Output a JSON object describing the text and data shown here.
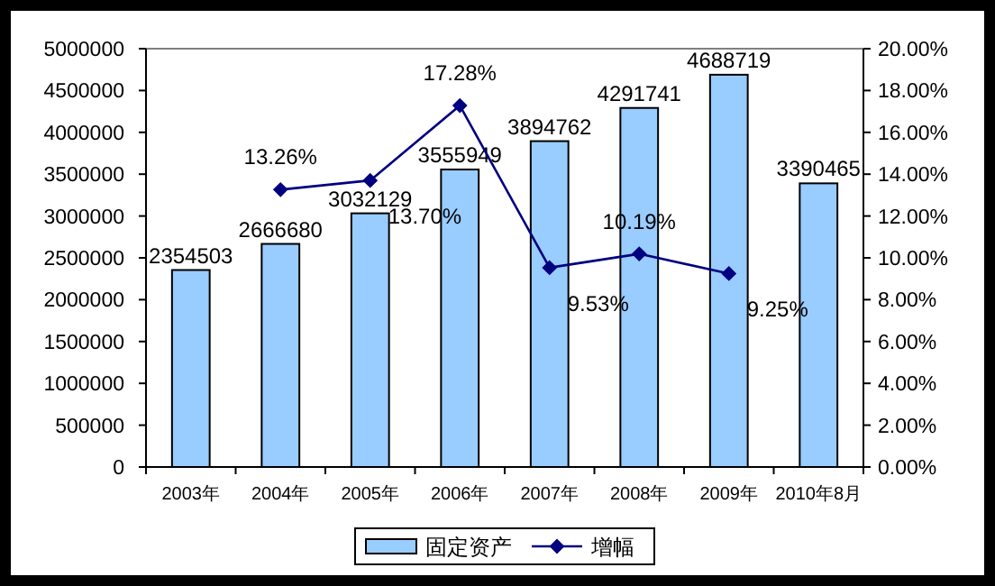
{
  "chart_data": {
    "type": "bar",
    "categories": [
      "2003年",
      "2004年",
      "2005年",
      "2006年",
      "2007年",
      "2008年",
      "2009年",
      "2010年8月"
    ],
    "series": [
      {
        "name": "固定资产",
        "color": "#99ccff",
        "values": [
          2354503,
          2666680,
          3032129,
          3555949,
          3894762,
          4291741,
          4688719,
          3390465
        ]
      },
      {
        "name": "增幅",
        "type": "line",
        "axis": "y2",
        "color": "#000080",
        "values": [
          null,
          13.26,
          13.7,
          17.28,
          9.53,
          10.19,
          9.25,
          null
        ],
        "value_labels": [
          null,
          "13.26%",
          "13.70%",
          "17.28%",
          "9.53%",
          "10.19%",
          "9.25%",
          null
        ]
      }
    ],
    "data_labels": true,
    "ylim": [
      0,
      5000000
    ],
    "yticks": [
      0,
      500000,
      1000000,
      1500000,
      2000000,
      2500000,
      3000000,
      3500000,
      4000000,
      4500000,
      5000000
    ],
    "y2lim": [
      0,
      20
    ],
    "y2ticks": [
      {
        "value": 0,
        "label": "0.00%"
      },
      {
        "value": 2,
        "label": "2.00%"
      },
      {
        "value": 4,
        "label": "4.00%"
      },
      {
        "value": 6,
        "label": "6.00%"
      },
      {
        "value": 8,
        "label": "8.00%"
      },
      {
        "value": 10,
        "label": "10.00%"
      },
      {
        "value": 12,
        "label": "12.00%"
      },
      {
        "value": 14,
        "label": "14.00%"
      },
      {
        "value": 16,
        "label": "16.00%"
      },
      {
        "value": 18,
        "label": "18.00%"
      },
      {
        "value": 20,
        "label": "20.00%"
      }
    ],
    "marker": "diamond",
    "legend": "bottom",
    "grid": false
  }
}
